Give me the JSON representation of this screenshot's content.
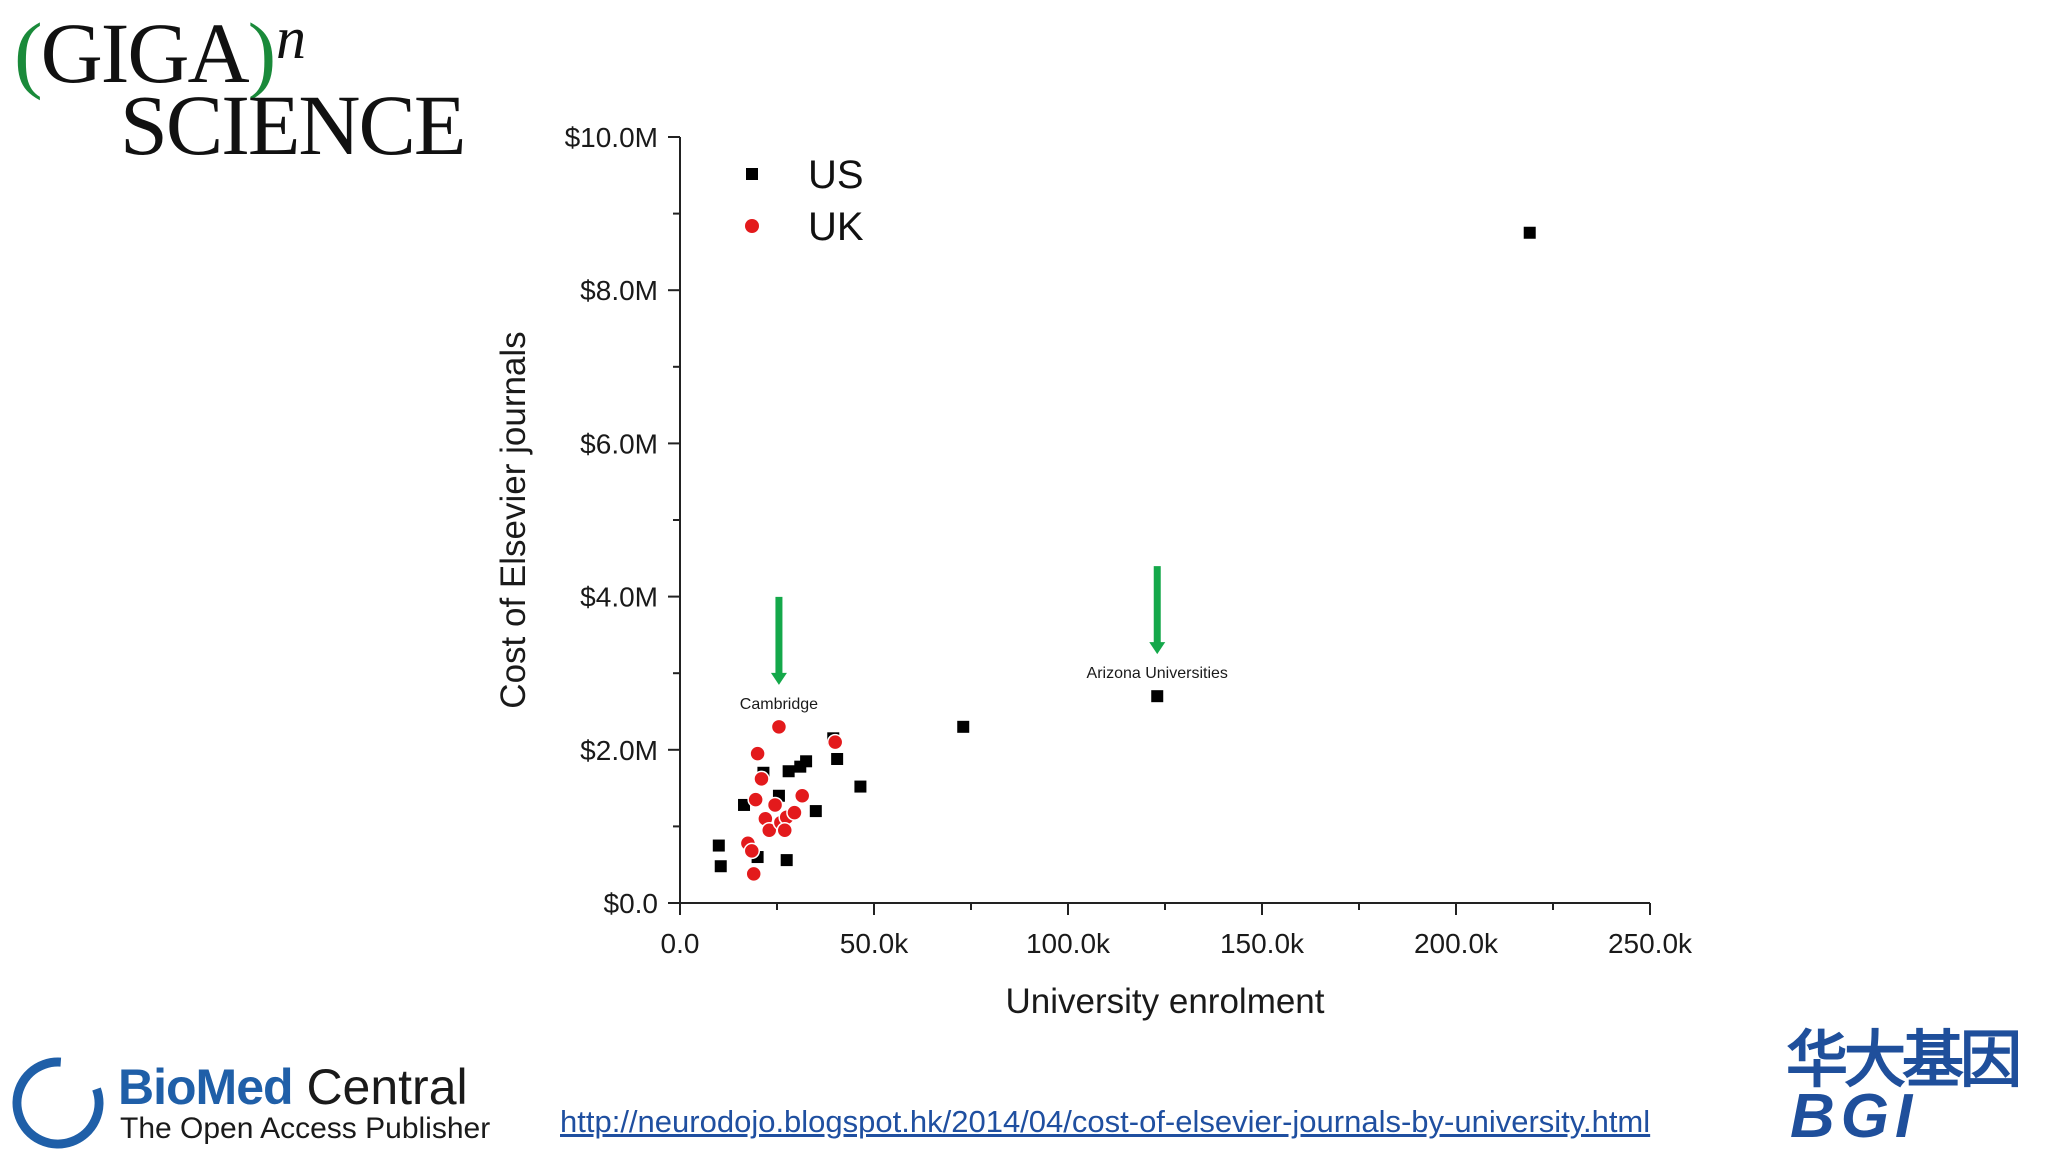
{
  "logos": {
    "gigascience": {
      "paren_open": "(",
      "giga": "GIGA",
      "paren_close": ")",
      "superscript": "n",
      "science": "SCIENCE"
    },
    "biomed": {
      "name_bold": "BioMed",
      "name_light": " Central",
      "tagline": "The Open Access Publisher"
    },
    "bgi": {
      "chinese": "华大基因",
      "english": "BGI"
    }
  },
  "source_url": "http://neurodojo.blogspot.hk/2014/04/cost-of-elsevier-journals-by-university.html",
  "chart_data": {
    "type": "scatter",
    "xlabel": "University enrolment",
    "ylabel": "Cost of Elsevier journals",
    "xlim": [
      0,
      250000
    ],
    "ylim": [
      0,
      10000000
    ],
    "x_ticks": [
      0,
      50000,
      100000,
      150000,
      200000,
      250000
    ],
    "x_tick_labels": [
      "0.0",
      "50.0k",
      "100.0k",
      "150.0k",
      "200.0k",
      "250.0k"
    ],
    "y_ticks": [
      0,
      2000000,
      4000000,
      6000000,
      8000000,
      10000000
    ],
    "y_tick_labels": [
      "$0.0",
      "$2.0M",
      "$4.0M",
      "$6.0M",
      "$8.0M",
      "$10.0M"
    ],
    "grid": false,
    "legend_position": "top-left",
    "series": [
      {
        "name": "US",
        "marker": "square",
        "color": "#000000",
        "points": [
          [
            10000,
            750000
          ],
          [
            10500,
            480000
          ],
          [
            20000,
            600000
          ],
          [
            16500,
            1280000
          ],
          [
            21500,
            1700000
          ],
          [
            25500,
            1400000
          ],
          [
            28000,
            1720000
          ],
          [
            31000,
            1780000
          ],
          [
            32500,
            1850000
          ],
          [
            27500,
            560000
          ],
          [
            35000,
            1200000
          ],
          [
            39500,
            2150000
          ],
          [
            40500,
            1880000
          ],
          [
            46500,
            1520000
          ],
          [
            73000,
            2300000
          ],
          [
            123000,
            2700000
          ],
          [
            219000,
            8750000
          ]
        ]
      },
      {
        "name": "UK",
        "marker": "circle",
        "color": "#e31a1c",
        "points": [
          [
            25500,
            2300000
          ],
          [
            20000,
            1950000
          ],
          [
            21000,
            1620000
          ],
          [
            19500,
            1350000
          ],
          [
            22000,
            1100000
          ],
          [
            24500,
            1280000
          ],
          [
            23000,
            950000
          ],
          [
            26000,
            1050000
          ],
          [
            27500,
            1120000
          ],
          [
            29500,
            1180000
          ],
          [
            31500,
            1400000
          ],
          [
            17500,
            780000
          ],
          [
            18500,
            680000
          ],
          [
            19000,
            380000
          ],
          [
            27000,
            950000
          ],
          [
            40000,
            2100000
          ]
        ]
      }
    ],
    "annotations": [
      {
        "text": "Cambridge",
        "x": 25500,
        "y": 2300000,
        "arrow": true,
        "arrow_color": "#14a84a"
      },
      {
        "text": "Arizona Universities",
        "x": 123000,
        "y": 2700000,
        "arrow": true,
        "arrow_color": "#14a84a"
      }
    ]
  }
}
